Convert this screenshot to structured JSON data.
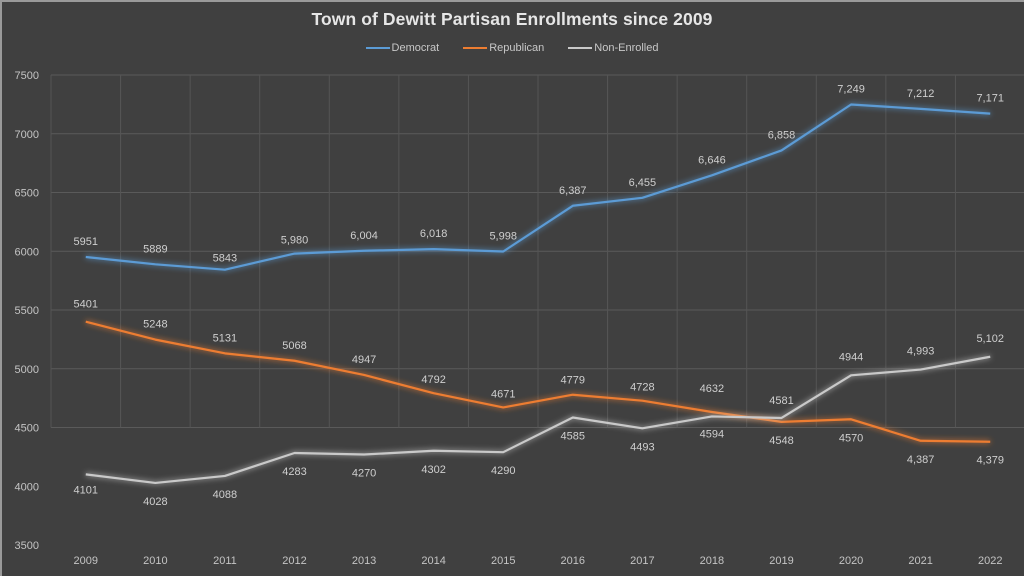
{
  "chart_data": {
    "type": "line",
    "title": "Town of Dewitt Partisan Enrollments since 2009",
    "xlabel": "",
    "ylabel": "",
    "ylim": [
      3500,
      7500
    ],
    "yticks": [
      "7500",
      "7000",
      "6500",
      "6000",
      "5500",
      "5000",
      "4500",
      "4000",
      "3500"
    ],
    "ytick_values": [
      7500,
      7000,
      6500,
      6000,
      5500,
      5000,
      4500,
      4000,
      3500
    ],
    "grid": true,
    "legend_position": "top-center",
    "categories": [
      "2009",
      "2010",
      "2011",
      "2012",
      "2013",
      "2014",
      "2015",
      "2016",
      "2017",
      "2018",
      "2019",
      "2020",
      "2021",
      "2022"
    ],
    "series": [
      {
        "name": "Democrat",
        "color": "#5b9bd5",
        "values": [
          5951,
          5889,
          5843,
          5980,
          6004,
          6018,
          5998,
          6387,
          6455,
          6646,
          6858,
          7249,
          7212,
          7171
        ],
        "labels": [
          "5951",
          "5889",
          "5843",
          "5,980",
          "6,004",
          "6,018",
          "5,998",
          "6,387",
          "6,455",
          "6,646",
          "6,858",
          "7,249",
          "7,212",
          "7,171"
        ],
        "label_position": "above"
      },
      {
        "name": "Republican",
        "color": "#ed7d31",
        "values": [
          5401,
          5248,
          5131,
          5068,
          4947,
          4792,
          4671,
          4779,
          4728,
          4632,
          4548,
          4570,
          4387,
          4379
        ],
        "labels": [
          "5401",
          "5248",
          "5131",
          "5068",
          "4947",
          "4792",
          "4671",
          "4779",
          "4728",
          "4632",
          "4548",
          "4570",
          "4,387",
          "4,379"
        ],
        "label_position": "mixed"
      },
      {
        "name": "Non-Enrolled",
        "color": "#c9c9c9",
        "values": [
          4101,
          4028,
          4088,
          4283,
          4270,
          4302,
          4290,
          4585,
          4493,
          4594,
          4581,
          4944,
          4993,
          5102
        ],
        "labels": [
          "4101",
          "4028",
          "4088",
          "4283",
          "4270",
          "4302",
          "4290",
          "4585",
          "4493",
          "4594",
          "4581",
          "4944",
          "4,993",
          "5,102"
        ],
        "label_position": "mixed"
      }
    ]
  }
}
